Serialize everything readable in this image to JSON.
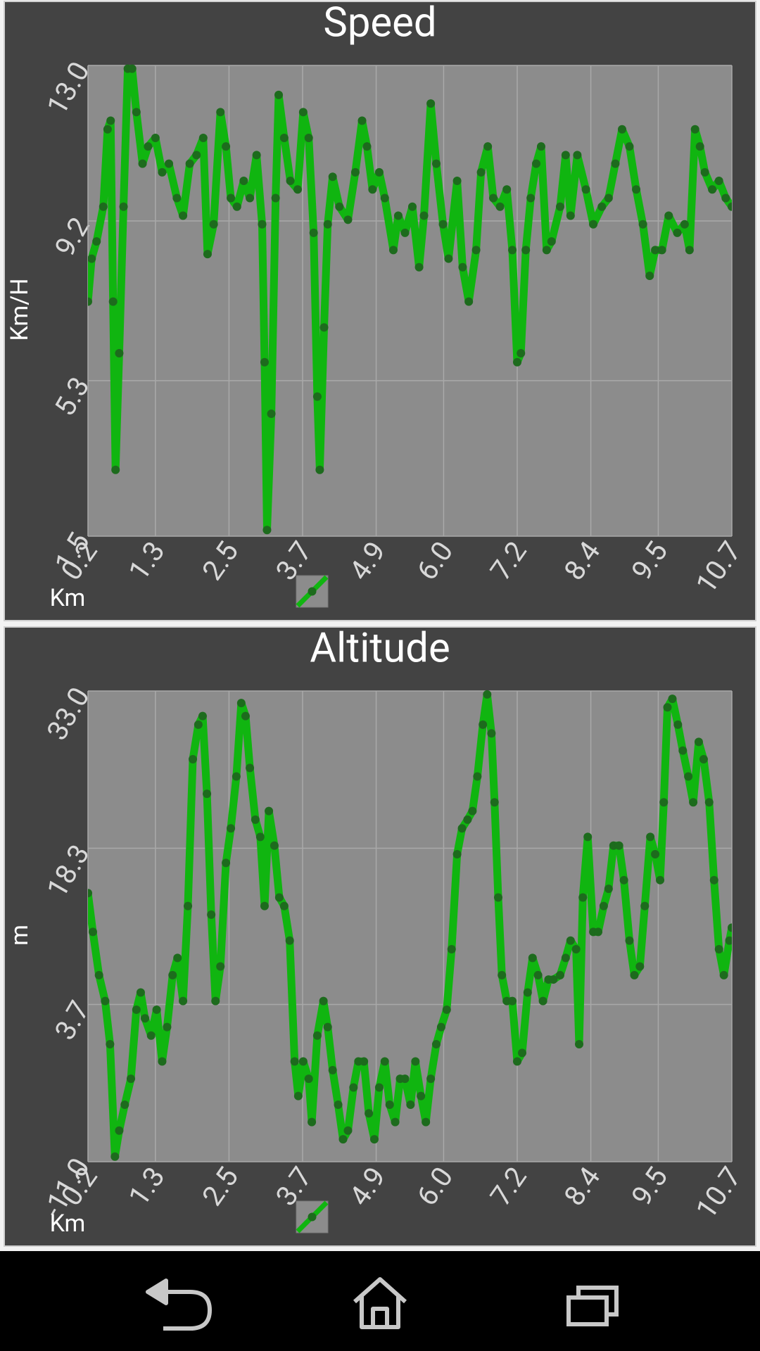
{
  "chart_data": [
    {
      "type": "line",
      "title": "Speed",
      "y_label": "Km/H",
      "x_label": "Km",
      "color": "#10b510",
      "marker_color": "#1d6b1d",
      "grid": true,
      "xlim": [
        0.2,
        10.7
      ],
      "xticks": [
        0.2,
        1.3,
        2.5,
        3.7,
        4.9,
        {
          "value": 6,
          "label": "6.0"
        },
        7.2,
        8.4,
        9.5,
        10.7
      ],
      "ylim": [
        1.5,
        13.0
      ],
      "yticks": [
        1.5,
        5.3,
        9.2,
        {
          "value": 13,
          "label": "13.0"
        }
      ],
      "x": [
        0.2,
        0.26,
        0.34,
        0.45,
        0.52,
        0.57,
        0.61,
        0.65,
        0.71,
        0.78,
        0.85,
        0.92,
        0.99,
        1.09,
        1.18,
        1.3,
        1.41,
        1.52,
        1.65,
        1.75,
        1.86,
        1.97,
        2.08,
        2.15,
        2.25,
        2.36,
        2.45,
        2.53,
        2.63,
        2.74,
        2.84,
        2.95,
        3.04,
        3.08,
        3.12,
        3.19,
        3.26,
        3.31,
        3.4,
        3.5,
        3.62,
        3.71,
        3.8,
        3.88,
        3.94,
        3.98,
        4.05,
        4.11,
        4.19,
        4.3,
        4.44,
        4.56,
        4.67,
        4.75,
        4.84,
        4.95,
        5.04,
        5.18,
        5.26,
        5.37,
        5.49,
        5.6,
        5.68,
        5.79,
        5.88,
        5.99,
        6.08,
        6.22,
        6.31,
        6.41,
        6.53,
        6.61,
        6.72,
        6.81,
        6.92,
        7.03,
        7.12,
        7.2,
        7.26,
        7.34,
        7.42,
        7.51,
        7.59,
        7.68,
        7.76,
        7.9,
        7.99,
        8.07,
        8.18,
        8.32,
        8.44,
        8.58,
        8.69,
        8.8,
        8.91,
        9.03,
        9.14,
        9.25,
        9.36,
        9.45,
        9.56,
        9.67,
        9.81,
        9.93,
        10.01,
        10.1,
        10.18,
        10.26,
        10.38,
        10.49,
        10.6,
        10.7
      ],
      "values": [
        7.23,
        8.28,
        8.7,
        9.55,
        11.44,
        11.65,
        7.23,
        3.12,
        5.97,
        9.55,
        12.92,
        12.92,
        11.86,
        10.6,
        11.02,
        11.23,
        10.39,
        10.6,
        9.76,
        9.33,
        10.6,
        10.81,
        11.23,
        8.39,
        9.12,
        11.86,
        11.02,
        9.76,
        9.55,
        10.18,
        9.76,
        10.81,
        9.12,
        5.75,
        1.65,
        4.49,
        9.76,
        12.28,
        11.23,
        10.18,
        9.97,
        11.86,
        11.23,
        8.91,
        4.91,
        3.12,
        6.6,
        9.12,
        10.28,
        9.55,
        9.23,
        10.39,
        11.65,
        11.02,
        9.97,
        10.39,
        9.76,
        8.49,
        9.33,
        8.91,
        9.55,
        8.07,
        9.33,
        12.07,
        10.6,
        9.12,
        8.28,
        10.18,
        8.07,
        7.23,
        8.49,
        10.39,
        11.02,
        9.76,
        9.55,
        9.97,
        8.49,
        5.75,
        5.97,
        8.49,
        9.76,
        10.6,
        11.02,
        8.49,
        8.7,
        9.55,
        10.81,
        9.33,
        10.81,
        9.97,
        9.12,
        9.55,
        9.76,
        10.6,
        11.44,
        11.02,
        9.97,
        9.12,
        7.86,
        8.49,
        8.49,
        9.33,
        8.91,
        9.12,
        8.49,
        11.44,
        11.02,
        10.39,
        9.97,
        10.18,
        9.76,
        9.55
      ]
    },
    {
      "type": "line",
      "title": "Altitude",
      "y_label": "m",
      "x_label": "Km",
      "color": "#10b510",
      "marker_color": "#1d6b1d",
      "grid": true,
      "xlim": [
        0.2,
        10.7
      ],
      "xticks": [
        0.2,
        1.3,
        2.5,
        3.7,
        4.9,
        {
          "value": 6,
          "label": "6.0"
        },
        7.2,
        8.4,
        9.5,
        10.7
      ],
      "ylim": [
        -11.0,
        33.0
      ],
      "yticks": [
        {
          "value": -11,
          "label": "-11.0"
        },
        3.7,
        18.3,
        {
          "value": 33,
          "label": "33.0"
        }
      ],
      "x": [
        0.2,
        0.28,
        0.38,
        0.48,
        0.56,
        0.64,
        0.71,
        0.8,
        0.9,
        0.99,
        1.06,
        1.13,
        1.23,
        1.32,
        1.41,
        1.49,
        1.58,
        1.66,
        1.75,
        1.83,
        1.91,
        2.0,
        2.07,
        2.14,
        2.21,
        2.28,
        2.36,
        2.45,
        2.53,
        2.62,
        2.7,
        2.77,
        2.84,
        2.93,
        3.01,
        3.08,
        3.15,
        3.24,
        3.32,
        3.4,
        3.49,
        3.57,
        3.63,
        3.71,
        3.8,
        3.85,
        3.94,
        4.04,
        4.11,
        4.19,
        4.28,
        4.36,
        4.44,
        4.53,
        4.61,
        4.7,
        4.78,
        4.87,
        4.95,
        5.04,
        5.12,
        5.21,
        5.29,
        5.37,
        5.46,
        5.54,
        5.63,
        5.71,
        5.79,
        5.88,
        5.96,
        6.05,
        6.13,
        6.22,
        6.3,
        6.39,
        6.47,
        6.55,
        6.64,
        6.71,
        6.78,
        6.83,
        6.89,
        6.95,
        7.03,
        7.12,
        7.2,
        7.28,
        7.37,
        7.45,
        7.54,
        7.62,
        7.71,
        7.79,
        7.9,
        7.99,
        8.07,
        8.16,
        8.21,
        8.27,
        8.35,
        8.44,
        8.52,
        8.61,
        8.69,
        8.77,
        8.86,
        8.94,
        9.03,
        9.11,
        9.2,
        9.28,
        9.37,
        9.45,
        9.53,
        9.59,
        9.65,
        9.73,
        9.82,
        9.9,
        9.99,
        10.07,
        10.16,
        10.24,
        10.33,
        10.41,
        10.49,
        10.57,
        10.66,
        10.7
      ],
      "values": [
        14.11,
        10.48,
        6.44,
        4.02,
        -0.02,
        -10.52,
        -8.09,
        -5.67,
        -3.25,
        3.21,
        4.82,
        2.4,
        0.79,
        3.21,
        -1.63,
        1.59,
        6.44,
        8.05,
        4.02,
        12.9,
        26.62,
        29.85,
        30.66,
        23.39,
        12.09,
        4.02,
        7.25,
        16.93,
        20.16,
        25.01,
        31.87,
        30.66,
        25.81,
        20.97,
        19.36,
        12.9,
        21.78,
        18.55,
        13.7,
        12.9,
        9.67,
        -1.63,
        -4.86,
        -1.63,
        -3.25,
        -7.29,
        0.79,
        4.02,
        1.59,
        -2.44,
        -5.67,
        -8.9,
        -8.09,
        -4.06,
        -1.63,
        -1.63,
        -6.48,
        -8.9,
        -4.06,
        -1.63,
        -5.67,
        -7.29,
        -3.25,
        -3.25,
        -5.67,
        -1.63,
        -4.86,
        -7.29,
        -3.25,
        -0.02,
        1.59,
        3.21,
        8.86,
        17.74,
        20.16,
        20.97,
        21.78,
        25.01,
        29.85,
        32.68,
        29.04,
        22.59,
        13.7,
        6.44,
        4.02,
        4.02,
        -1.63,
        -0.83,
        4.82,
        8.05,
        6.44,
        4.02,
        6.03,
        6.03,
        6.44,
        8.05,
        9.67,
        8.86,
        -0.02,
        13.7,
        19.36,
        10.48,
        10.48,
        12.9,
        14.51,
        18.55,
        18.55,
        15.32,
        9.67,
        6.44,
        7.25,
        12.9,
        19.36,
        17.74,
        15.32,
        22.59,
        31.47,
        32.27,
        29.85,
        27.43,
        25.01,
        22.59,
        28.24,
        26.62,
        22.59,
        15.32,
        8.86,
        6.44,
        9.67,
        10.88
      ]
    }
  ]
}
